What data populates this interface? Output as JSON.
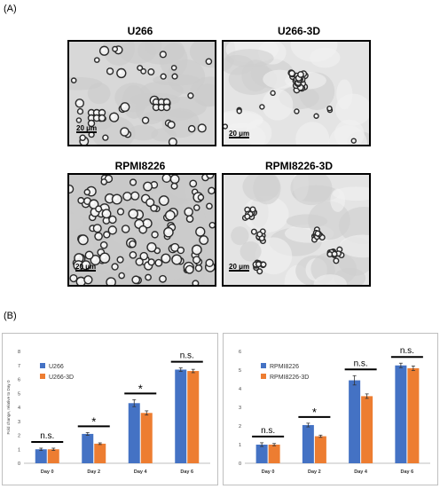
{
  "figure": {
    "panel_a_label": "(A)",
    "panel_b_label": "(B)",
    "images": [
      {
        "title": "U266",
        "scale_label": "20 μm",
        "style": "2d"
      },
      {
        "title": "U266-3D",
        "scale_label": "20 μm",
        "style": "3d"
      },
      {
        "title": "RPMI8226",
        "scale_label": "20 μm",
        "style": "2d-dense"
      },
      {
        "title": "RPMI8226-3D",
        "scale_label": "20 μm",
        "style": "3d-clusters"
      }
    ]
  },
  "colors": {
    "blue": "#4472C4",
    "orange": "#ED7D31"
  },
  "chart_data": [
    {
      "type": "bar",
      "categories": [
        "Day 0",
        "Day 2",
        "Day 4",
        "Day 6"
      ],
      "series": [
        {
          "name": "U266",
          "values": [
            1.0,
            2.1,
            4.3,
            6.7
          ],
          "errors": [
            0.08,
            0.1,
            0.25,
            0.12
          ]
        },
        {
          "name": "U266-3D",
          "values": [
            1.0,
            1.4,
            3.6,
            6.6
          ],
          "errors": [
            0.08,
            0.06,
            0.15,
            0.12
          ]
        }
      ],
      "ylabel": "Fold change, relative to Day 0",
      "ylim": [
        0,
        8
      ],
      "yticks": [
        0,
        1,
        2,
        3,
        4,
        5,
        6,
        7,
        8
      ],
      "annotations": [
        "n.s.",
        "*",
        "*",
        "n.s."
      ],
      "legend": "top-left",
      "grid": false
    },
    {
      "type": "bar",
      "categories": [
        "Day 0",
        "Day 2",
        "Day 4",
        "Day 6"
      ],
      "series": [
        {
          "name": "RPMI8226",
          "values": [
            1.0,
            2.05,
            4.45,
            5.25
          ],
          "errors": [
            0.1,
            0.1,
            0.25,
            0.12
          ]
        },
        {
          "name": "RPMI8226-3D",
          "values": [
            1.0,
            1.45,
            3.6,
            5.1
          ],
          "errors": [
            0.06,
            0.06,
            0.12,
            0.12
          ]
        }
      ],
      "ylim": [
        0,
        6
      ],
      "yticks": [
        0,
        1,
        2,
        3,
        4,
        5,
        6
      ],
      "annotations": [
        "n.s.",
        "*",
        "n.s.",
        "n.s."
      ],
      "legend": "top-left",
      "grid": false
    }
  ]
}
